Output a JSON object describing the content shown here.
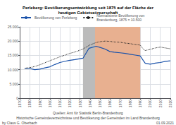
{
  "chart_data": {
    "type": "line",
    "title": "Perleberg: Bevölkerungsentwicklung seit 1875 auf der Fläche der\nheutigen Gebietsкörperschaft",
    "x": [
      1875,
      1880,
      1885,
      1890,
      1895,
      1900,
      1905,
      1910,
      1916,
      1919,
      1925,
      1933,
      1939,
      1946,
      1950,
      1955,
      1960,
      1964,
      1970,
      1975,
      1980,
      1985,
      1990,
      1993,
      1995,
      2000,
      2005,
      2010,
      2015,
      2020
    ],
    "xlim": [
      1870,
      2020
    ],
    "xticks": [
      1870,
      1880,
      1890,
      1900,
      1910,
      1920,
      1930,
      1940,
      1950,
      1960,
      1970,
      1980,
      1990,
      2000,
      2010,
      2020
    ],
    "ylim": [
      0,
      25000
    ],
    "yticks": [
      0,
      {
        "value": 5000,
        "label": "5.000"
      },
      {
        "value": 10000,
        "label": "10.000"
      },
      {
        "value": 15000,
        "label": "15.000"
      },
      {
        "value": 20000,
        "label": "20.000"
      },
      {
        "value": 25000,
        "label": "25.000"
      }
    ],
    "grid": true,
    "legend": "upper left",
    "series": [
      {
        "name": "Bevölkerung von Perleberg",
        "color": "#1a52aa",
        "line_style": "solid",
        "values": [
          10500,
          10400,
          10000,
          10200,
          10600,
          11000,
          11800,
          12500,
          13000,
          13200,
          13500,
          14000,
          17500,
          18200,
          17800,
          17200,
          16300,
          16100,
          15900,
          15700,
          15400,
          15100,
          14800,
          13200,
          12200,
          11900,
          12300,
          12500,
          12900,
          13100
        ]
      },
      {
        "name": "Normalisierte Bevölkerung von\nBrandenburg, 1875 = 10.500",
        "color": "#222222",
        "line_style": "dotted",
        "values": [
          10500,
          10700,
          11100,
          11700,
          12400,
          13100,
          13800,
          14500,
          15200,
          15600,
          16200,
          17200,
          18500,
          19500,
          19800,
          20000,
          19900,
          19700,
          19600,
          19300,
          19100,
          18800,
          18600,
          17200,
          16700,
          17100,
          17600,
          17900,
          17600,
          17300
        ]
      }
    ],
    "shaded_ranges": [
      {
        "start": 1933,
        "end": 1945,
        "color": "#bbbbbb"
      },
      {
        "start": 1945,
        "end": 1990,
        "color": "#e8b090"
      }
    ],
    "annotations": [
      "Quellen: Amt für Statistik Berlin-Brandenburg",
      "Historische Gemeindeverzeichnisse und Bevölkerung der Gemeinden im Land Brandenburg",
      "by Claus G. Oberbach",
      "01.09.2021"
    ]
  }
}
